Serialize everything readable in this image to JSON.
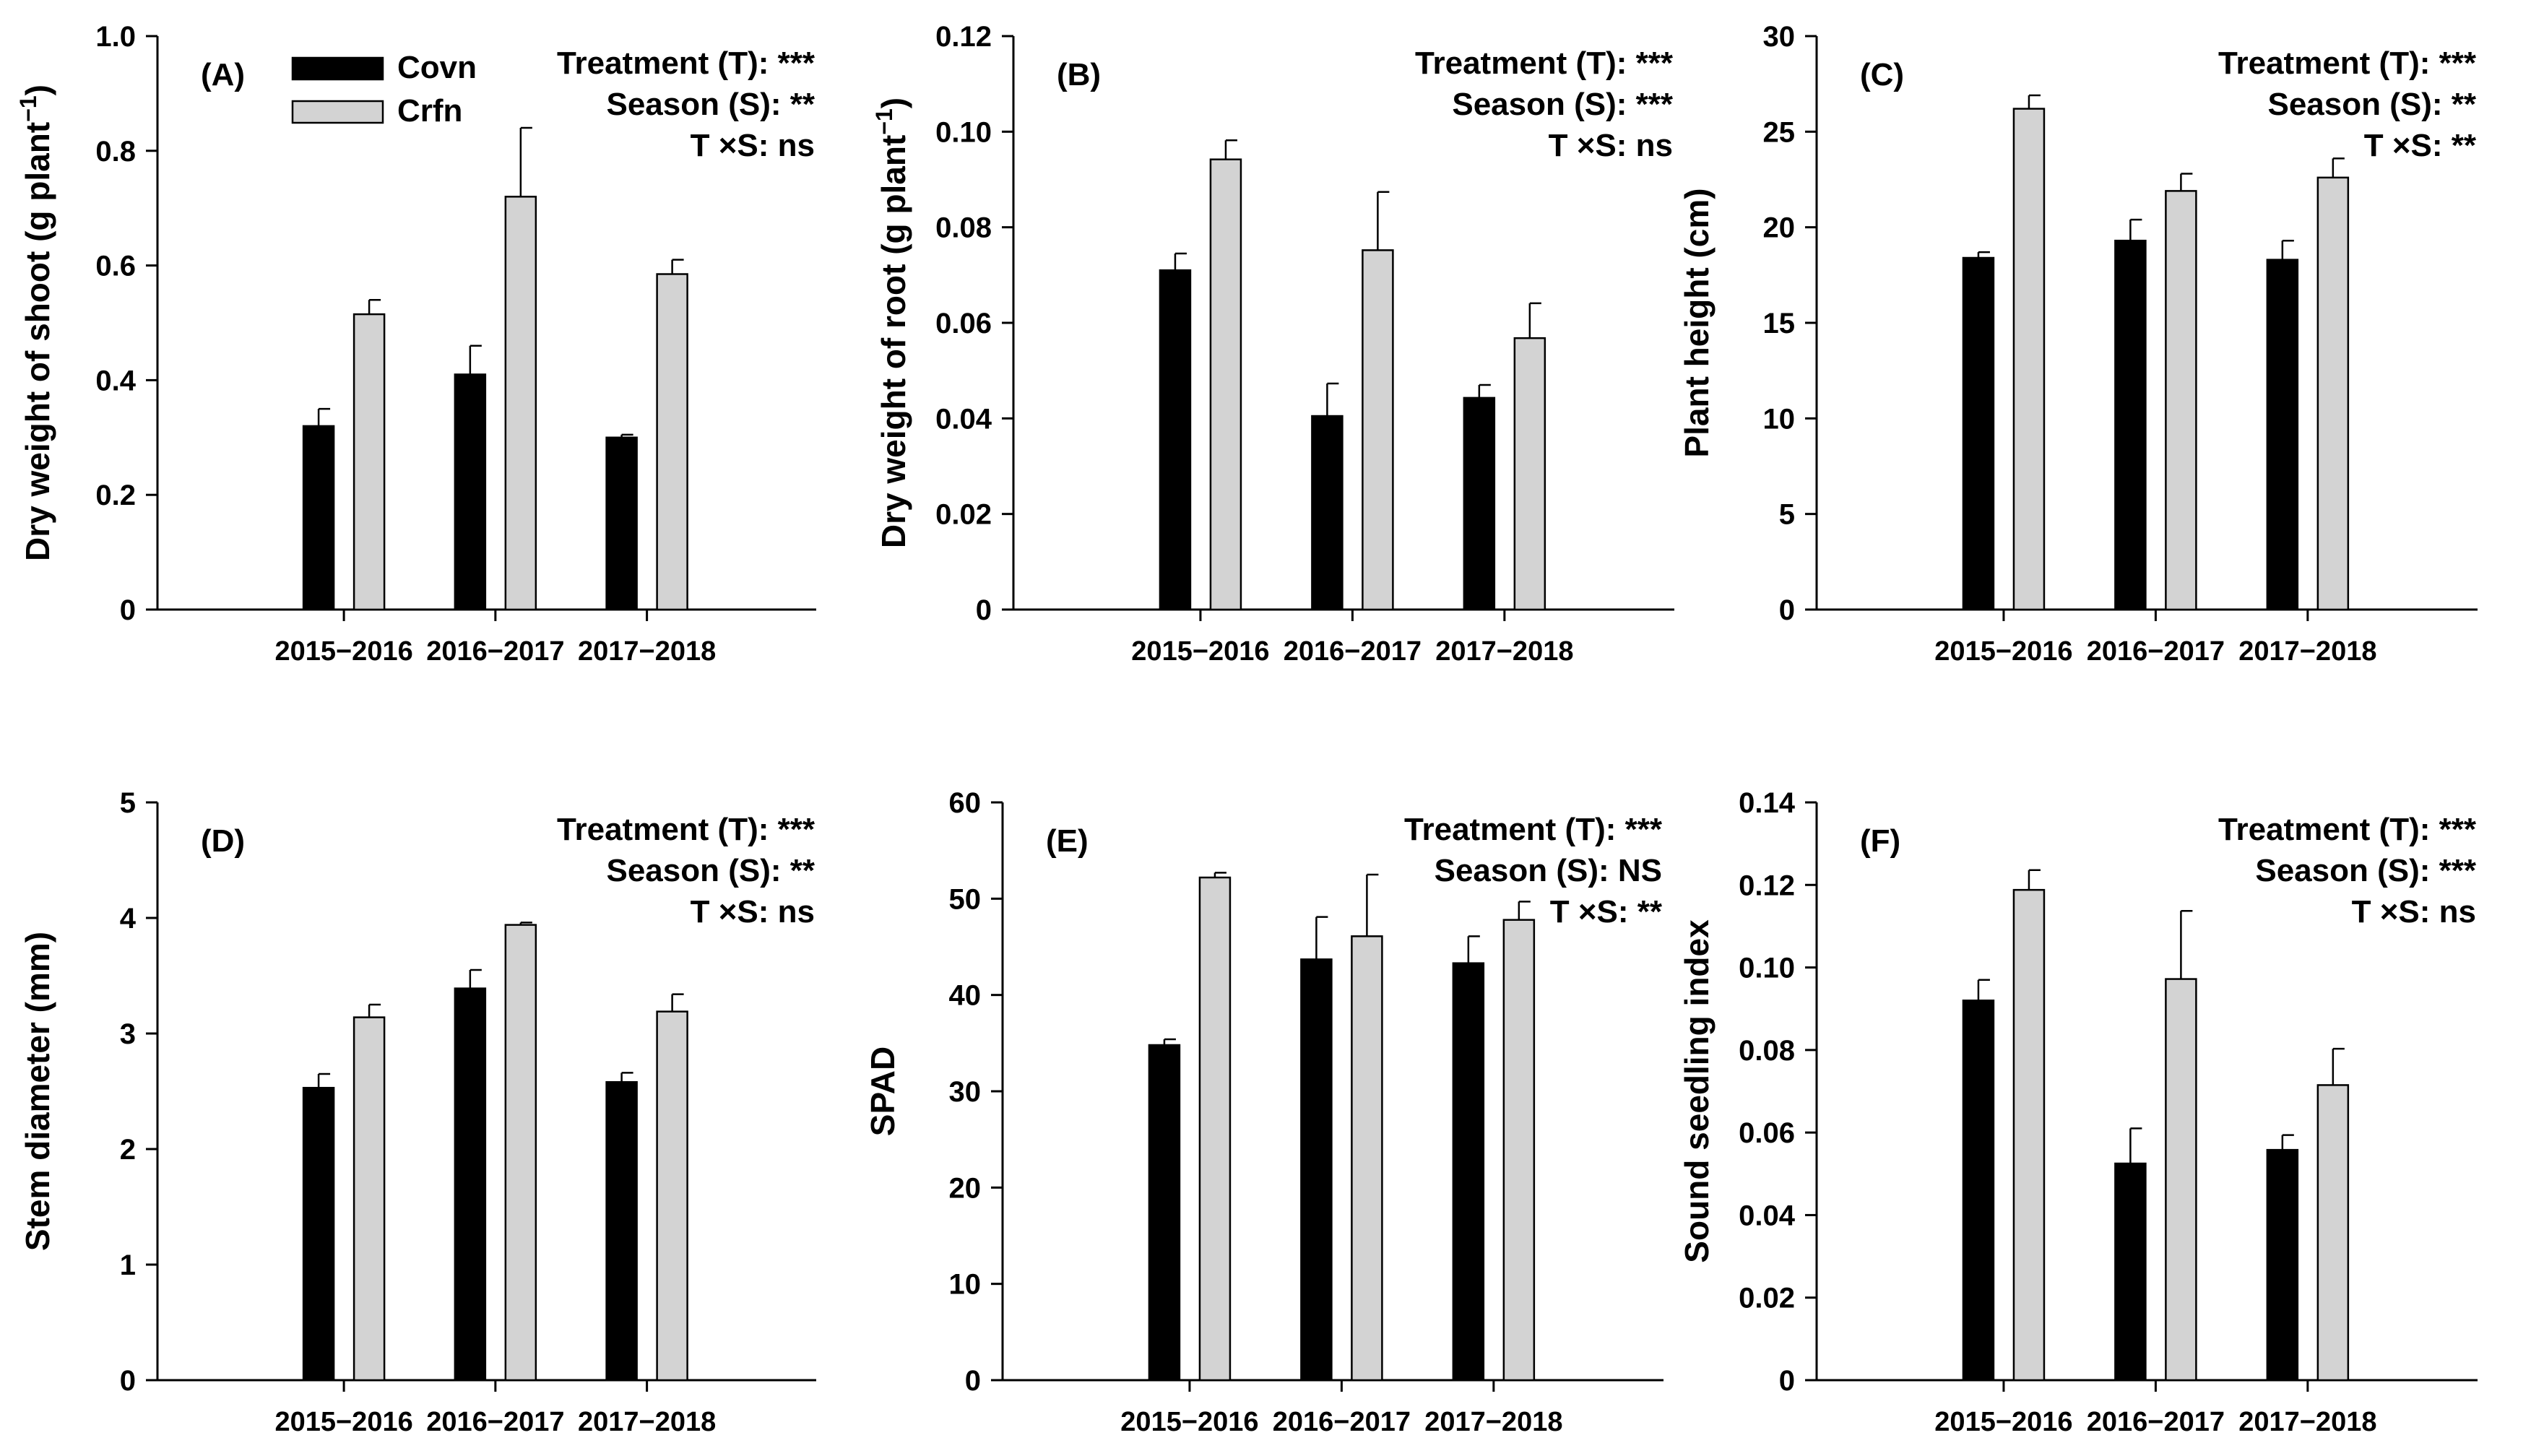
{
  "legend": {
    "series": [
      {
        "name": "Covn",
        "color": "#000000"
      },
      {
        "name": "Crfn",
        "color": "#d3d3d3"
      }
    ],
    "placement": "top-left of panel A"
  },
  "chart_data": [
    {
      "type": "bar",
      "panel_label": "(A)",
      "categories": [
        "2015−2016",
        "2016−2017",
        "2017−2018"
      ],
      "ylabel": "Dry weight of shoot (g plant",
      "ylabel_sup": "−1",
      "ylabel_end": ")",
      "ylim": [
        0,
        1.0
      ],
      "yticks": [
        "0",
        "0.2",
        "0.4",
        "0.6",
        "0.8",
        "1.0"
      ],
      "series": [
        {
          "name": "Covn",
          "values": [
            0.32,
            0.41,
            0.3
          ],
          "errors": [
            0.03,
            0.05,
            0.005
          ]
        },
        {
          "name": "Crfn",
          "values": [
            0.515,
            0.72,
            0.585
          ],
          "errors": [
            0.025,
            0.12,
            0.025
          ]
        }
      ],
      "annotations": [
        "Treatment (T): ***",
        "Season (S): **",
        "T ×S: ns"
      ]
    },
    {
      "type": "bar",
      "panel_label": "(B)",
      "categories": [
        "2015−2016",
        "2016−2017",
        "2017−2018"
      ],
      "ylabel": "Dry weight of root (g plant",
      "ylabel_sup": "−1",
      "ylabel_end": ")",
      "ylim": [
        0,
        0.12
      ],
      "yticks": [
        "0",
        "0.02",
        "0.04",
        "0.06",
        "0.08",
        "0.10",
        "0.12"
      ],
      "series": [
        {
          "name": "Covn",
          "values": [
            0.071,
            0.0405,
            0.0443
          ],
          "errors": [
            0.0035,
            0.0068,
            0.0027
          ]
        },
        {
          "name": "Crfn",
          "values": [
            0.0942,
            0.0752,
            0.0568
          ],
          "errors": [
            0.004,
            0.0122,
            0.0073
          ]
        }
      ],
      "annotations": [
        "Treatment (T): ***",
        "Season (S): ***",
        "T ×S: ns"
      ]
    },
    {
      "type": "bar",
      "panel_label": "(C)",
      "categories": [
        "2015−2016",
        "2016−2017",
        "2017−2018"
      ],
      "ylabel": "Plant height (cm)",
      "ylabel_sup": "",
      "ylabel_end": "",
      "ylim": [
        0,
        30
      ],
      "yticks": [
        "0",
        "5",
        "10",
        "15",
        "20",
        "25",
        "30"
      ],
      "series": [
        {
          "name": "Covn",
          "values": [
            18.4,
            19.3,
            18.3
          ],
          "errors": [
            0.3,
            1.1,
            1.0
          ]
        },
        {
          "name": "Crfn",
          "values": [
            26.2,
            21.9,
            22.6
          ],
          "errors": [
            0.7,
            0.9,
            1.0
          ]
        }
      ],
      "annotations": [
        "Treatment (T): ***",
        "Season (S): **",
        "T ×S: **"
      ]
    },
    {
      "type": "bar",
      "panel_label": "(D)",
      "categories": [
        "2015−2016",
        "2016−2017",
        "2017−2018"
      ],
      "ylabel": "Stem diameter (mm)",
      "ylabel_sup": "",
      "ylabel_end": "",
      "ylim": [
        0,
        5
      ],
      "yticks": [
        "0",
        "1",
        "2",
        "3",
        "4",
        "5"
      ],
      "series": [
        {
          "name": "Covn",
          "values": [
            2.53,
            3.39,
            2.58
          ],
          "errors": [
            0.12,
            0.16,
            0.08
          ]
        },
        {
          "name": "Crfn",
          "values": [
            3.14,
            3.94,
            3.19
          ],
          "errors": [
            0.11,
            0.02,
            0.15
          ]
        }
      ],
      "annotations": [
        "Treatment (T): ***",
        "Season (S): **",
        "T ×S: ns"
      ]
    },
    {
      "type": "bar",
      "panel_label": "(E)",
      "categories": [
        "2015−2016",
        "2016−2017",
        "2017−2018"
      ],
      "ylabel": "SPAD",
      "ylabel_sup": "",
      "ylabel_end": "",
      "ylim": [
        0,
        60
      ],
      "yticks": [
        "0",
        "10",
        "20",
        "30",
        "40",
        "50",
        "60"
      ],
      "series": [
        {
          "name": "Covn",
          "values": [
            34.8,
            43.7,
            43.3
          ],
          "errors": [
            0.6,
            4.4,
            2.8
          ]
        },
        {
          "name": "Crfn",
          "values": [
            52.2,
            46.1,
            47.8
          ],
          "errors": [
            0.5,
            6.4,
            1.9
          ]
        }
      ],
      "annotations": [
        "Treatment (T): ***",
        "Season (S): NS",
        "T ×S: **"
      ]
    },
    {
      "type": "bar",
      "panel_label": "(F)",
      "categories": [
        "2015−2016",
        "2016−2017",
        "2017−2018"
      ],
      "ylabel": "Sound seedling index",
      "ylabel_sup": "",
      "ylabel_end": "",
      "ylim": [
        0,
        0.14
      ],
      "yticks": [
        "0",
        "0.02",
        "0.04",
        "0.06",
        "0.08",
        "0.10",
        "0.12",
        "0.14"
      ],
      "series": [
        {
          "name": "Covn",
          "values": [
            0.092,
            0.0525,
            0.0558
          ],
          "errors": [
            0.005,
            0.0085,
            0.0036
          ]
        },
        {
          "name": "Crfn",
          "values": [
            0.1188,
            0.0972,
            0.0715
          ],
          "errors": [
            0.0048,
            0.0165,
            0.0088
          ]
        }
      ],
      "annotations": [
        "Treatment (T): ***",
        "Season (S): ***",
        "T ×S: ns"
      ]
    }
  ]
}
